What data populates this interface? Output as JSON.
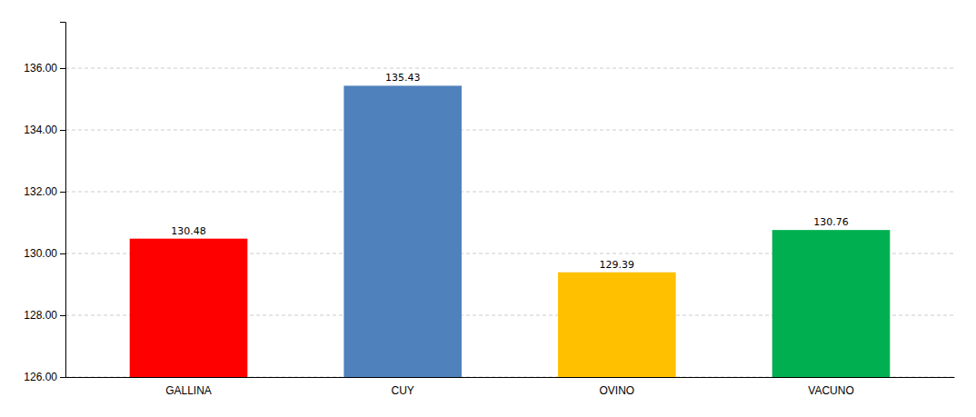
{
  "chart_data": {
    "type": "bar",
    "categories": [
      "GALLINA",
      "CUY",
      "OVINO",
      "VACUNO"
    ],
    "values": [
      130.48,
      135.43,
      129.39,
      130.76
    ],
    "colors": [
      "#ff0000",
      "#4f81bd",
      "#ffc000",
      "#00b050"
    ],
    "ylim": [
      126.0,
      137.5
    ],
    "yticks": [
      {
        "value": 126,
        "label": "126.00"
      },
      {
        "value": 128,
        "label": "128.00"
      },
      {
        "value": 130,
        "label": "130.00"
      },
      {
        "value": 132,
        "label": "132.00"
      },
      {
        "value": 134,
        "label": "134.00"
      },
      {
        "value": 136,
        "label": "136.00"
      }
    ],
    "grid": true,
    "data_labels": true
  }
}
